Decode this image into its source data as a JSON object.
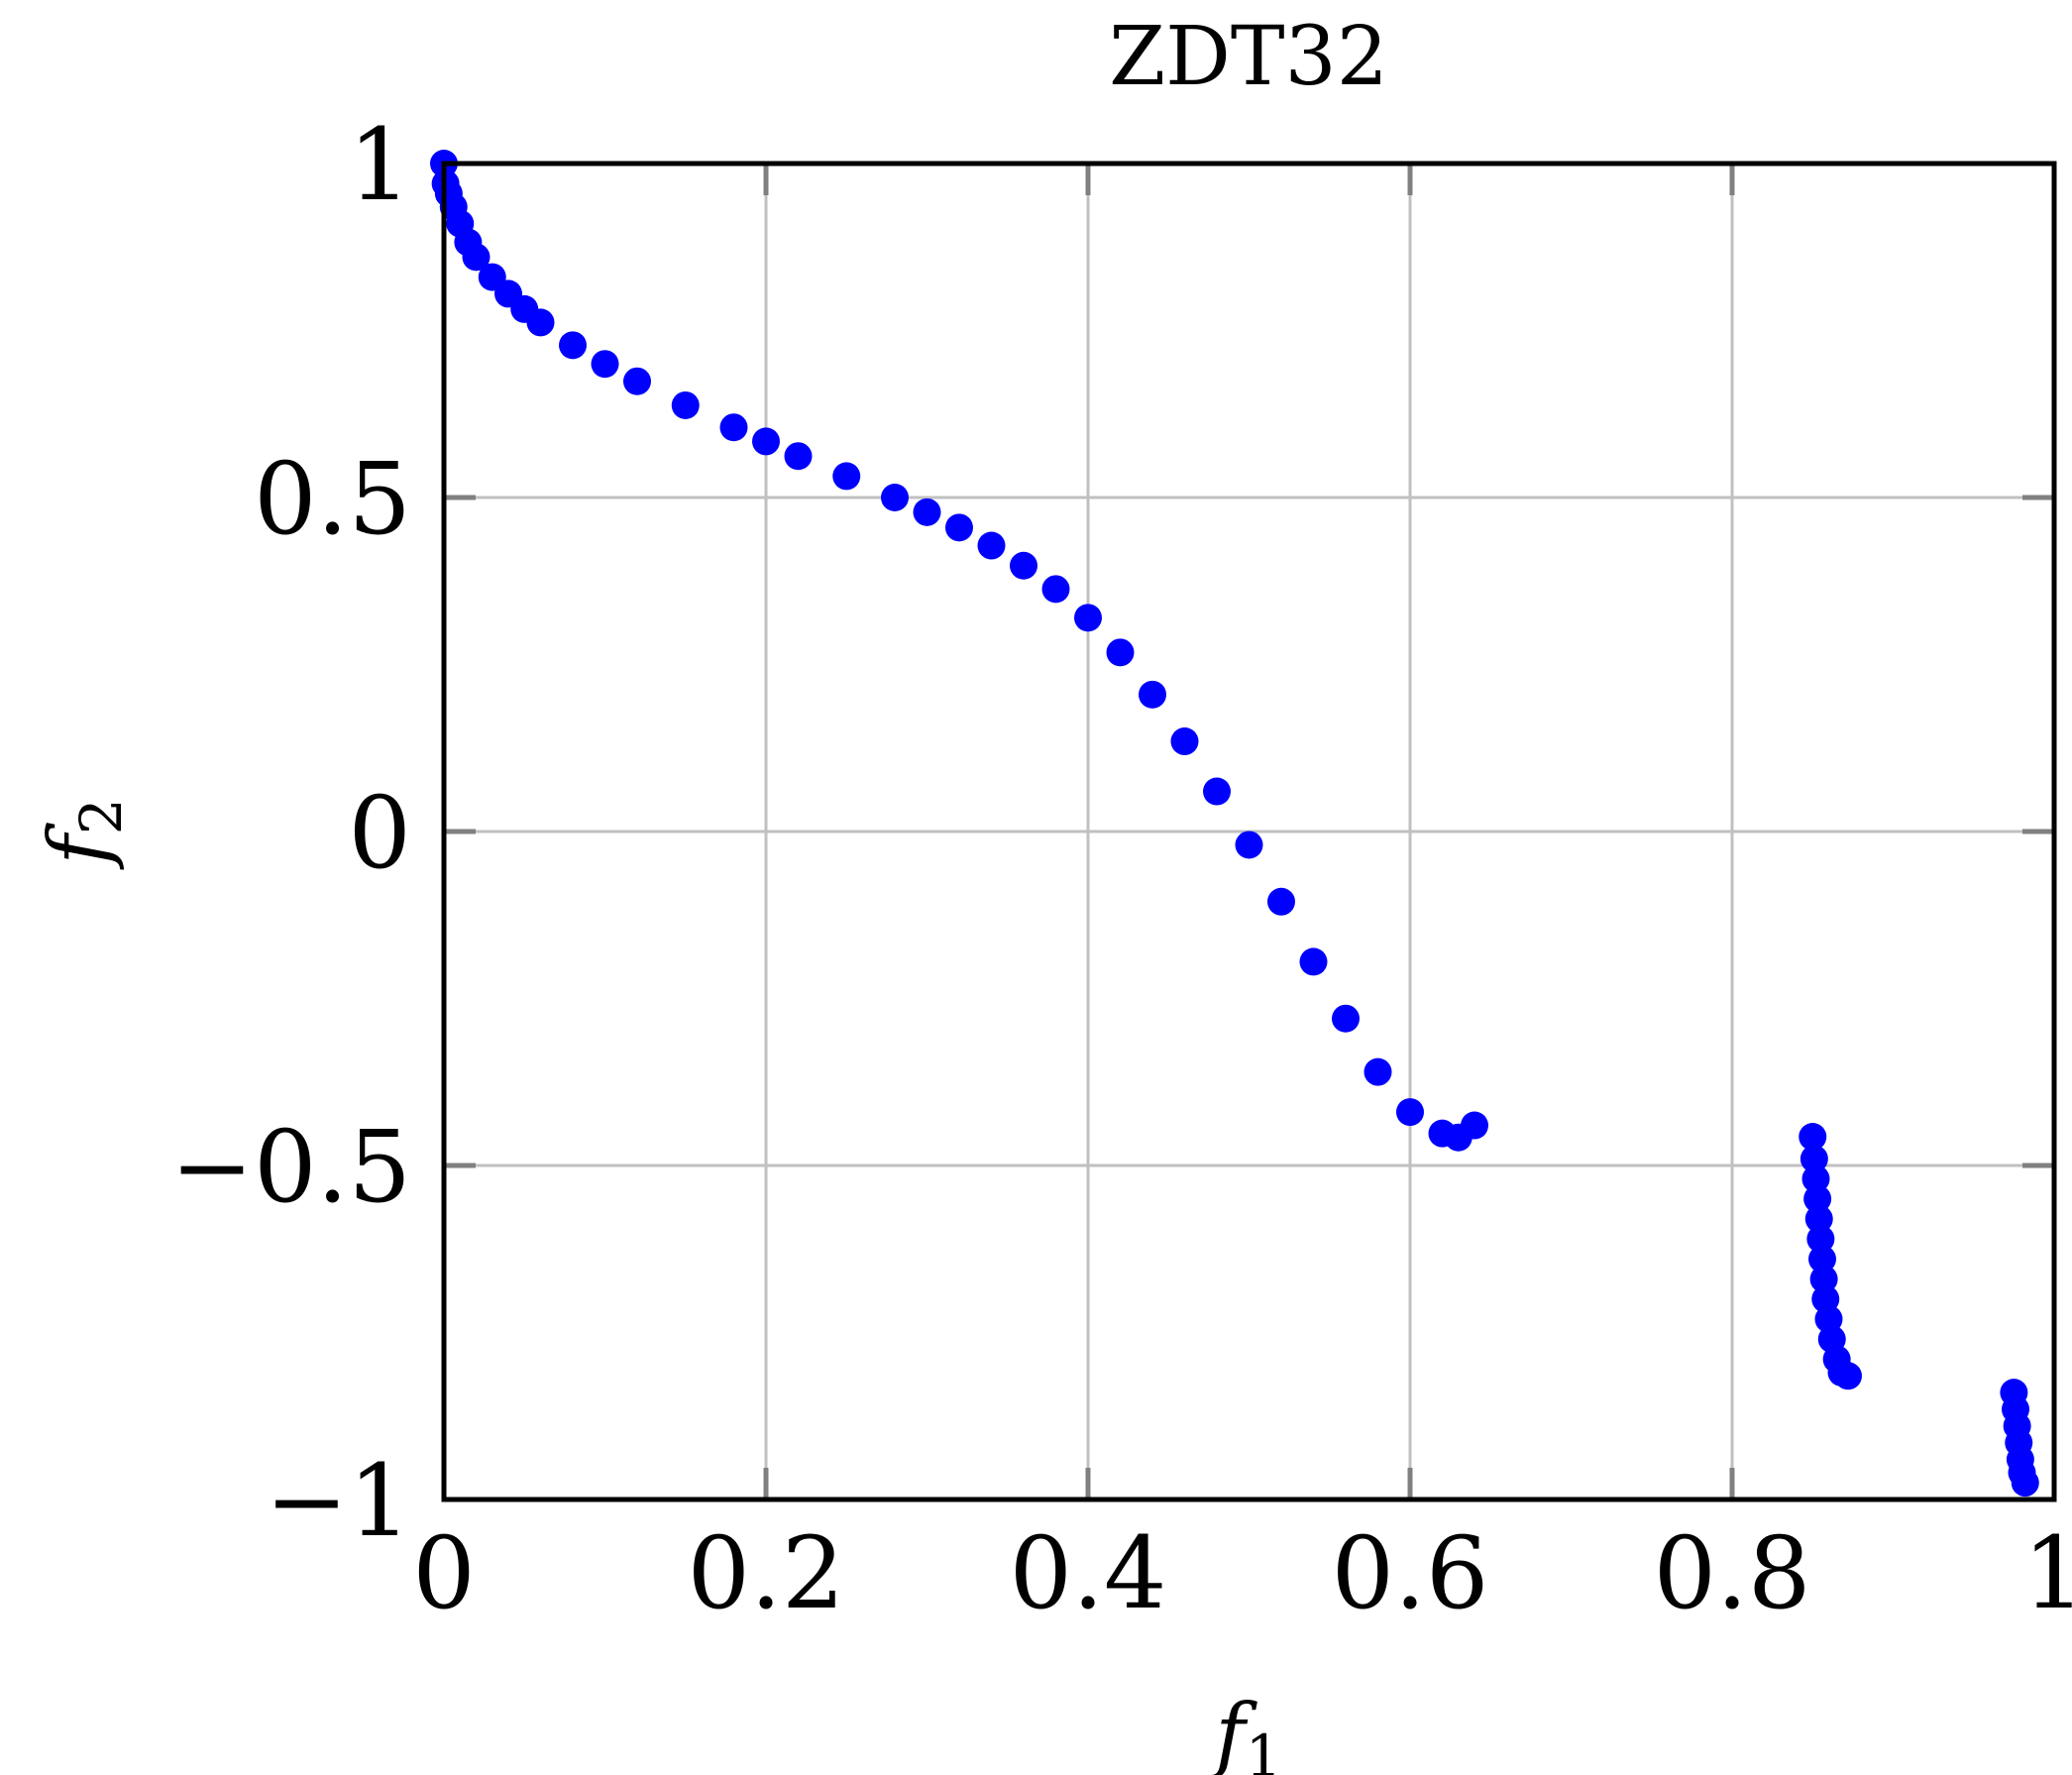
{
  "chart_data": {
    "type": "scatter",
    "title": "ZDT32",
    "xlabel": {
      "base": "f",
      "sub": "1"
    },
    "ylabel": {
      "base": "f",
      "sub": "2"
    },
    "xlim": [
      0,
      1
    ],
    "ylim": [
      -1,
      1
    ],
    "grid": true,
    "x_ticks": [
      0,
      0.2,
      0.4,
      0.6,
      0.8,
      1
    ],
    "x_tick_labels": [
      "0",
      "0.2",
      "0.4",
      "0.6",
      "0.8",
      "1"
    ],
    "y_ticks": [
      -1,
      -0.5,
      0,
      0.5,
      1
    ],
    "y_tick_labels": [
      "−1",
      "−0.5",
      "0",
      "0.5",
      "1"
    ],
    "colors": {
      "marker": "#0000ff",
      "grid": "#c0c0c0",
      "tick": "#808080",
      "frame": "#000000"
    },
    "series": [
      {
        "marker_color": "#0000ff",
        "points": [
          [
            0.0,
            1.0
          ],
          [
            0.001,
            0.97
          ],
          [
            0.003,
            0.955
          ],
          [
            0.006,
            0.935
          ],
          [
            0.01,
            0.91
          ],
          [
            0.015,
            0.882
          ],
          [
            0.02,
            0.86
          ],
          [
            0.03,
            0.83
          ],
          [
            0.04,
            0.805
          ],
          [
            0.05,
            0.782
          ],
          [
            0.06,
            0.762
          ],
          [
            0.08,
            0.728
          ],
          [
            0.1,
            0.7
          ],
          [
            0.12,
            0.674
          ],
          [
            0.15,
            0.638
          ],
          [
            0.18,
            0.605
          ],
          [
            0.2,
            0.584
          ],
          [
            0.22,
            0.562
          ],
          [
            0.25,
            0.532
          ],
          [
            0.28,
            0.5
          ],
          [
            0.3,
            0.478
          ],
          [
            0.32,
            0.455
          ],
          [
            0.34,
            0.428
          ],
          [
            0.36,
            0.398
          ],
          [
            0.38,
            0.363
          ],
          [
            0.4,
            0.32
          ],
          [
            0.42,
            0.268
          ],
          [
            0.44,
            0.205
          ],
          [
            0.46,
            0.135
          ],
          [
            0.48,
            0.06
          ],
          [
            0.5,
            -0.02
          ],
          [
            0.52,
            -0.105
          ],
          [
            0.54,
            -0.195
          ],
          [
            0.56,
            -0.28
          ],
          [
            0.58,
            -0.36
          ],
          [
            0.6,
            -0.42
          ],
          [
            0.62,
            -0.452
          ],
          [
            0.63,
            -0.458
          ],
          [
            0.64,
            -0.44
          ],
          [
            0.85,
            -0.457
          ],
          [
            0.851,
            -0.49
          ],
          [
            0.852,
            -0.52
          ],
          [
            0.853,
            -0.55
          ],
          [
            0.854,
            -0.58
          ],
          [
            0.855,
            -0.61
          ],
          [
            0.856,
            -0.64
          ],
          [
            0.857,
            -0.67
          ],
          [
            0.858,
            -0.7
          ],
          [
            0.86,
            -0.73
          ],
          [
            0.862,
            -0.76
          ],
          [
            0.865,
            -0.79
          ],
          [
            0.868,
            -0.81
          ],
          [
            0.872,
            -0.815
          ],
          [
            0.975,
            -0.84
          ],
          [
            0.976,
            -0.865
          ],
          [
            0.977,
            -0.89
          ],
          [
            0.978,
            -0.915
          ],
          [
            0.979,
            -0.94
          ],
          [
            0.98,
            -0.96
          ],
          [
            0.982,
            -0.975
          ]
        ]
      }
    ]
  }
}
